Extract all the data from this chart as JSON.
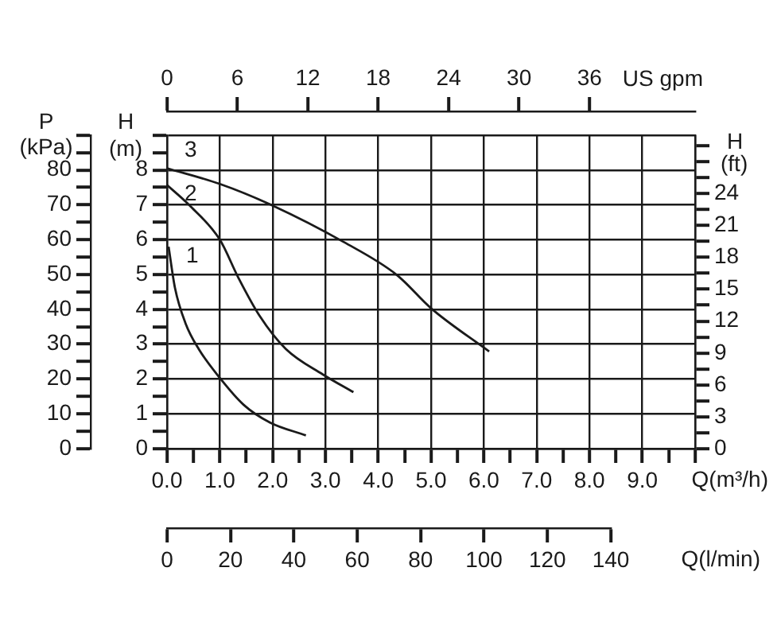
{
  "chart_data": [
    {
      "type": "line",
      "marker": "none",
      "grid": true,
      "xlabel": "Q(m³/h)",
      "ylabel": "H (m)",
      "x2label": "US gpm",
      "y2label": "P (kPa)",
      "y3label": "H (ft)",
      "series": [
        {
          "name": "1",
          "color": "#1a1a1a",
          "x": [
            0.03,
            0.15,
            0.35,
            0.6,
            1.0,
            1.45,
            1.95,
            2.63
          ],
          "values": [
            5.8,
            4.62,
            3.6,
            2.86,
            2.03,
            1.26,
            0.75,
            0.38
          ]
        },
        {
          "name": "2",
          "color": "#1a1a1a",
          "x": [
            0,
            0.45,
            1.0,
            1.35,
            1.75,
            2.25,
            2.95,
            3.53
          ],
          "values": [
            7.57,
            6.95,
            6.0,
            4.91,
            3.82,
            2.86,
            2.13,
            1.62
          ]
        },
        {
          "name": "3",
          "color": "#1a1a1a",
          "x": [
            0,
            1.0,
            2.0,
            3.35,
            4.35,
            5.0,
            6.1
          ],
          "values": [
            8.05,
            7.6,
            6.98,
            5.93,
            4.99,
            4.03,
            2.79
          ]
        }
      ],
      "xlim": [
        0,
        10
      ],
      "xticks": [
        {
          "value": 0,
          "label": "0.0"
        },
        {
          "value": 0.5,
          "label": null
        },
        {
          "value": 1,
          "label": "1.0"
        },
        {
          "value": 1.5,
          "label": null
        },
        {
          "value": 2,
          "label": "2.0"
        },
        {
          "value": 2.5,
          "label": null
        },
        {
          "value": 3,
          "label": "3.0"
        },
        {
          "value": 3.5,
          "label": null
        },
        {
          "value": 4,
          "label": "4.0"
        },
        {
          "value": 4.5,
          "label": null
        },
        {
          "value": 5,
          "label": "5.0"
        },
        {
          "value": 5.5,
          "label": null
        },
        {
          "value": 6,
          "label": "6.0"
        },
        {
          "value": 6.5,
          "label": null
        },
        {
          "value": 7,
          "label": "7.0"
        },
        {
          "value": 7.5,
          "label": null
        },
        {
          "value": 8,
          "label": "8.0"
        },
        {
          "value": 8.5,
          "label": null
        },
        {
          "value": 9,
          "label": "9.0"
        },
        {
          "value": 9.5,
          "label": null
        },
        {
          "value": 10,
          "label": null
        }
      ],
      "ylim": [
        0,
        9
      ],
      "yticks": [
        0,
        {
          "value": 0.5,
          "label": null
        },
        1,
        {
          "value": 1.5,
          "label": null
        },
        2,
        {
          "value": 2.5,
          "label": null
        },
        3,
        {
          "value": 3.5,
          "label": null
        },
        4,
        {
          "value": 4.5,
          "label": null
        },
        5,
        {
          "value": 5.5,
          "label": null
        },
        6,
        {
          "value": 6.5,
          "label": null
        },
        7,
        {
          "value": 7.5,
          "label": null
        },
        8,
        {
          "value": 8.5,
          "label": null
        },
        {
          "value": 9,
          "label": null
        }
      ],
      "x2lim": [
        0,
        45
      ],
      "x2ticks": [
        0,
        6,
        12,
        18,
        24,
        30,
        36
      ],
      "y2lim": [
        0,
        90
      ],
      "y2ticks": [
        0,
        {
          "value": 5,
          "label": null
        },
        10,
        {
          "value": 15,
          "label": null
        },
        20,
        {
          "value": 25,
          "label": null
        },
        30,
        {
          "value": 35,
          "label": null
        },
        40,
        {
          "value": 45,
          "label": null
        },
        50,
        {
          "value": 55,
          "label": null
        },
        60,
        {
          "value": 65,
          "label": null
        },
        70,
        {
          "value": 75,
          "label": null
        },
        80,
        {
          "value": 85,
          "label": null
        },
        {
          "value": 90,
          "label": null
        }
      ],
      "y3lim": [
        0,
        29.5
      ],
      "y3ticks": [
        0,
        {
          "value": 1.5,
          "label": null
        },
        3,
        {
          "value": 4.5,
          "label": null
        },
        6,
        {
          "value": 7.5,
          "label": null
        },
        9,
        {
          "value": 10.5,
          "label": null
        },
        12,
        {
          "value": 13.5,
          "label": null
        },
        15,
        {
          "value": 16.5,
          "label": null
        },
        18,
        {
          "value": 19.5,
          "label": null
        },
        21,
        {
          "value": 22.5,
          "label": null
        },
        24,
        {
          "value": 25.5,
          "label": null
        },
        {
          "value": 27,
          "label": null
        },
        {
          "value": 28.5,
          "label": null
        }
      ]
    },
    {
      "type": "line",
      "xlabel": "Q(l/min)",
      "tick_labels": "x",
      "ylim": [
        0,
        9
      ],
      "xlim": [
        0,
        140
      ],
      "xticks": [
        0,
        20,
        40,
        60,
        80,
        100,
        120,
        140
      ]
    }
  ]
}
